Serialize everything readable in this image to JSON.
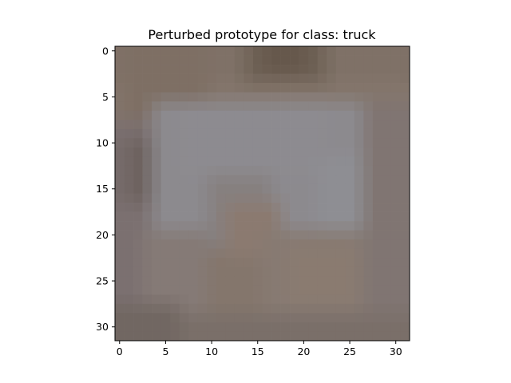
{
  "chart_data": {
    "type": "heatmap",
    "title": "Perturbed prototype for class: truck",
    "xlabel": "",
    "ylabel": "",
    "grid": false,
    "image_size": [
      32,
      32
    ],
    "xlim": [
      -0.5,
      31.5
    ],
    "ylim": [
      31.5,
      -0.5
    ],
    "x_ticks": [
      0,
      5,
      10,
      15,
      20,
      25,
      30
    ],
    "y_ticks": [
      0,
      5,
      10,
      15,
      20,
      25,
      30
    ],
    "x_tick_labels": [
      "0",
      "5",
      "10",
      "15",
      "20",
      "25",
      "30"
    ],
    "y_tick_labels": [
      "0",
      "5",
      "10",
      "15",
      "20",
      "25",
      "30"
    ],
    "base_color": "#84766c",
    "regions": [
      {
        "x": [
          0,
          31
        ],
        "y": [
          0,
          31
        ],
        "color": "#84766c"
      },
      {
        "x": [
          0,
          31
        ],
        "y": [
          0,
          3
        ],
        "color": "#7f7167"
      },
      {
        "x": [
          14,
          22
        ],
        "y": [
          0,
          3
        ],
        "color": "#6f6256"
      },
      {
        "x": [
          16,
          20
        ],
        "y": [
          0,
          2
        ],
        "color": "#66584c"
      },
      {
        "x": [
          1,
          9
        ],
        "y": [
          0,
          7
        ],
        "color": "#7e6f64"
      },
      {
        "x": [
          0,
          3
        ],
        "y": [
          8,
          31
        ],
        "color": "#7b7070"
      },
      {
        "x": [
          1,
          5
        ],
        "y": [
          10,
          16
        ],
        "color": "#6e6360"
      },
      {
        "x": [
          4,
          27
        ],
        "y": [
          6,
          19
        ],
        "color": "#8c8a8e"
      },
      {
        "x": [
          7,
          22
        ],
        "y": [
          6,
          13
        ],
        "color": "#8d8b90"
      },
      {
        "x": [
          22,
          27
        ],
        "y": [
          12,
          19
        ],
        "color": "#8e8e93"
      },
      {
        "x": [
          10,
          16
        ],
        "y": [
          14,
          21
        ],
        "color": "#86807f"
      },
      {
        "x": [
          12,
          17
        ],
        "y": [
          17,
          22
        ],
        "color": "#8b7a70"
      },
      {
        "x": [
          3,
          9
        ],
        "y": [
          20,
          31
        ],
        "color": "#857a76"
      },
      {
        "x": [
          16,
          27
        ],
        "y": [
          20,
          31
        ],
        "color": "#877a72"
      },
      {
        "x": [
          19,
          25
        ],
        "y": [
          22,
          27
        ],
        "color": "#8a7b70"
      },
      {
        "x": [
          27,
          31
        ],
        "y": [
          6,
          31
        ],
        "color": "#807572"
      },
      {
        "x": [
          0,
          31
        ],
        "y": [
          29,
          31
        ],
        "color": "#7a6f69"
      },
      {
        "x": [
          0,
          6
        ],
        "y": [
          28,
          31
        ],
        "color": "#716762"
      }
    ]
  }
}
